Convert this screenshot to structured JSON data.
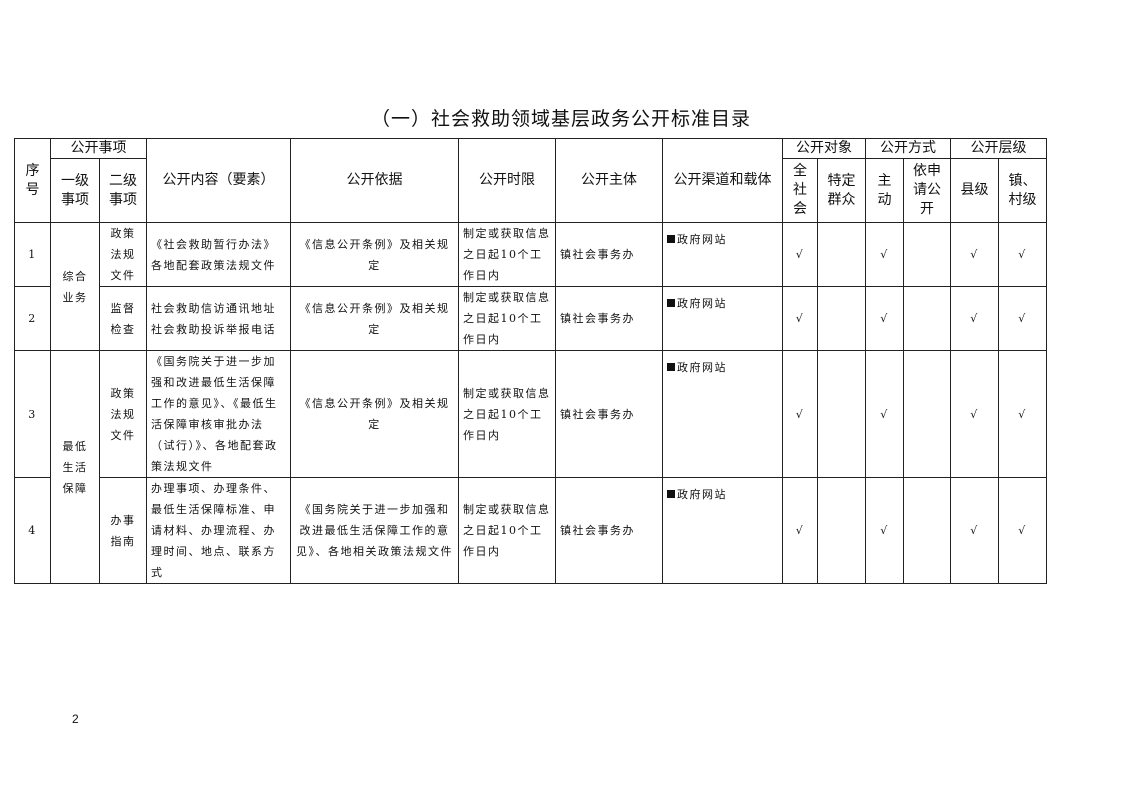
{
  "title": "（一）社会救助领域基层政务公开标准目录",
  "header": {
    "seq": "序号",
    "items": "公开事项",
    "level1": "一级事项",
    "level2": "二级事项",
    "content": "公开内容（要素）",
    "basis": "公开依据",
    "time_limit": "公开时限",
    "subject": "公开主体",
    "channel": "公开渠道和载体",
    "target": "公开对象",
    "target_all": "全社会",
    "target_specific": "特定群众",
    "method": "公开方式",
    "method_active": "主动",
    "method_apply": "依申请公开",
    "level": "公开层级",
    "level_county": "县级",
    "level_town": "镇、村级"
  },
  "groups": [
    {
      "label": "综合业务"
    },
    {
      "label": "最低生活保障"
    }
  ],
  "rows": [
    {
      "seq": "1",
      "level2": "政策法规文件",
      "content": "《社会救助暂行办法》各地配套政策法规文件",
      "basis": "《信息公开条例》及相关规定",
      "time_limit": "制定或获取信息之日起10个工作日内",
      "subject": "镇社会事务办",
      "channel": "政府网站",
      "all": "√",
      "specific": "",
      "active": "√",
      "apply": "",
      "county": "√",
      "town": "√"
    },
    {
      "seq": "2",
      "level2": "监督检查",
      "content": "社会救助信访通讯地址社会救助投诉举报电话",
      "basis": "《信息公开条例》及相关规定",
      "time_limit": "制定或获取信息之日起10个工作日内",
      "subject": "镇社会事务办",
      "channel": "政府网站",
      "all": "√",
      "specific": "",
      "active": "√",
      "apply": "",
      "county": "√",
      "town": "√"
    },
    {
      "seq": "3",
      "level2": "政策法规文件",
      "content": "《国务院关于进一步加强和改进最低生活保障工作的意见》、《最低生活保障审核审批办法（试行）》、各地配套政策法规文件",
      "basis": "《信息公开条例》及相关规定",
      "time_limit": "制定或获取信息之日起10个工作日内",
      "subject": "镇社会事务办",
      "channel": "政府网站",
      "all": "√",
      "specific": "",
      "active": "√",
      "apply": "",
      "county": "√",
      "town": "√"
    },
    {
      "seq": "4",
      "level2": "办事指南",
      "content": "办理事项、办理条件、最低生活保障标准、申请材料、办理流程、办理时间、地点、联系方式",
      "basis": "《国务院关于进一步加强和改进最低生活保障工作的意见》、各地相关政策法规文件",
      "time_limit": "制定或获取信息之日起10个工作日内",
      "subject": "镇社会事务办",
      "channel": "政府网站",
      "all": "√",
      "specific": "",
      "active": "√",
      "apply": "",
      "county": "√",
      "town": "√"
    }
  ],
  "page_number": "2"
}
